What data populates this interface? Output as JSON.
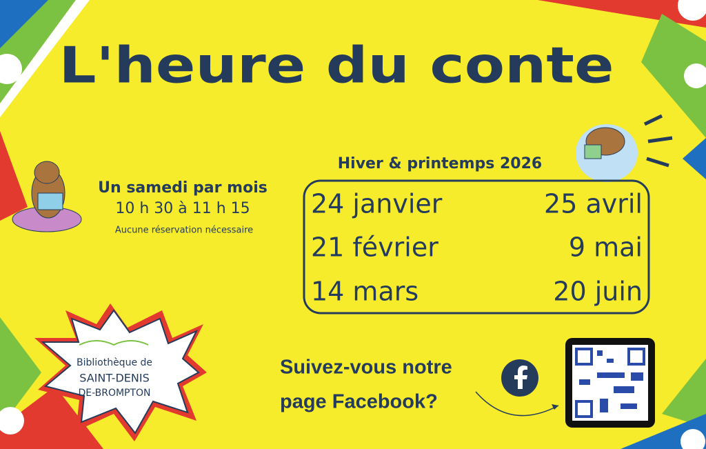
{
  "title": "L'heure du conte",
  "session": {
    "frequency": "Un samedi par mois",
    "time": "10 h 30 à 11 h 15",
    "note": "Aucune réservation nécessaire"
  },
  "schedule": {
    "heading": "Hiver & printemps 2026",
    "dates": [
      [
        "24 janvier",
        "25 avril"
      ],
      [
        "21 février",
        "9 mai"
      ],
      [
        "14 mars",
        "20 juin"
      ]
    ]
  },
  "library": {
    "line1": "Bibliothèque de",
    "line2": "SAINT-DENIS",
    "line3": "DE-BROMPTON"
  },
  "facebook": {
    "line1": "Suivez-vous notre",
    "line2": "page Facebook?"
  }
}
